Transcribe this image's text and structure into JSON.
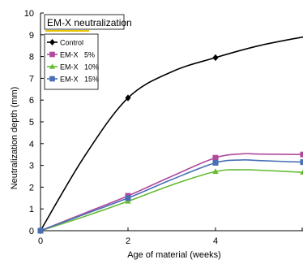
{
  "chart_data": {
    "type": "line",
    "title": "EM-X neutralization",
    "xlabel": "Age of material (weeks)",
    "ylabel": "Neutralization depth (mm)",
    "xlim": [
      0,
      6
    ],
    "ylim": [
      0,
      10
    ],
    "x_ticks": [
      "0",
      "2",
      "4"
    ],
    "y_ticks": [
      "0",
      "1",
      "2",
      "3",
      "4",
      "5",
      "6",
      "7",
      "8",
      "9",
      "10"
    ],
    "legend_position": "top-left",
    "grid": false,
    "series": [
      {
        "name": "Control",
        "color": "#000000",
        "marker": "diamond",
        "points": [
          [
            0,
            0
          ],
          [
            2,
            6.1
          ],
          [
            4,
            7.95
          ]
        ],
        "curve": [
          [
            0,
            0
          ],
          [
            1,
            3.4
          ],
          [
            2,
            6.1
          ],
          [
            3,
            7.3
          ],
          [
            4,
            7.95
          ],
          [
            5,
            8.5
          ],
          [
            6,
            8.9
          ]
        ]
      },
      {
        "name": "EM-X 5%",
        "color": "#b04a9e",
        "marker": "square",
        "points": [
          [
            0,
            0
          ],
          [
            2,
            1.6
          ],
          [
            4,
            3.35
          ],
          [
            6,
            3.5
          ]
        ],
        "curve": [
          [
            0,
            0
          ],
          [
            1,
            0.8
          ],
          [
            2,
            1.6
          ],
          [
            3,
            2.5
          ],
          [
            4,
            3.35
          ],
          [
            4.6,
            3.53
          ],
          [
            5,
            3.52
          ],
          [
            6,
            3.5
          ]
        ]
      },
      {
        "name": "EM-X 10%",
        "color": "#66bb33",
        "marker": "triangle",
        "points": [
          [
            0,
            0
          ],
          [
            2,
            1.35
          ],
          [
            4,
            2.72
          ],
          [
            6,
            2.68
          ]
        ],
        "curve": [
          [
            0,
            0
          ],
          [
            1,
            0.65
          ],
          [
            2,
            1.35
          ],
          [
            3,
            2.1
          ],
          [
            4,
            2.72
          ],
          [
            4.6,
            2.8
          ],
          [
            5,
            2.78
          ],
          [
            6,
            2.68
          ]
        ]
      },
      {
        "name": "EM-X 15%",
        "color": "#4a6fb5",
        "marker": "square",
        "points": [
          [
            0,
            0
          ],
          [
            2,
            1.5
          ],
          [
            4,
            3.12
          ],
          [
            6,
            3.15
          ]
        ],
        "curve": [
          [
            0,
            0
          ],
          [
            1,
            0.75
          ],
          [
            2,
            1.5
          ],
          [
            3,
            2.35
          ],
          [
            4,
            3.12
          ],
          [
            4.6,
            3.25
          ],
          [
            5,
            3.22
          ],
          [
            6,
            3.15
          ]
        ]
      }
    ],
    "legend": [
      {
        "label": "Control",
        "color": "#000000",
        "marker": "diamond"
      },
      {
        "label": "EM-X   5%",
        "color": "#b04a9e",
        "marker": "square"
      },
      {
        "label": "EM-X   10%",
        "color": "#66bb33",
        "marker": "triangle"
      },
      {
        "label": "EM-X   15%",
        "color": "#4a6fb5",
        "marker": "square"
      }
    ],
    "title_underline_color": "#e8c400"
  }
}
